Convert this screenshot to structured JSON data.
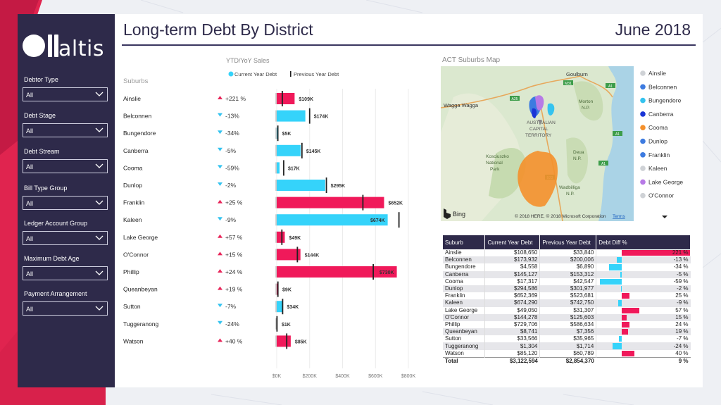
{
  "header": {
    "title": "Long-term Debt By District",
    "date": "June 2018"
  },
  "brand": {
    "logo_text": "altis"
  },
  "filters": [
    {
      "label": "Debtor Type",
      "value": "All"
    },
    {
      "label": "Debt Stage",
      "value": "All"
    },
    {
      "label": "Debt Stream",
      "value": "All"
    },
    {
      "label": "Bill Type Group",
      "value": "All"
    },
    {
      "label": "Ledger Account Group",
      "value": "All"
    },
    {
      "label": "Maximum Debt Age",
      "value": "All"
    },
    {
      "label": "Payment Arrangement",
      "value": "All"
    }
  ],
  "chart_panel": {
    "header": "YTD/YoY Sales",
    "rows_header": "Suburbs"
  },
  "colors": {
    "increase": "#f0195a",
    "decrease": "#35d3fa",
    "previous_marker": "#222222",
    "sidebar": "#2e2a4a",
    "up_arrow": "#e8265a",
    "down_arrow": "#35c3ef"
  },
  "chart_data": {
    "type": "bar",
    "orientation": "horizontal",
    "title": "YTD/YoY Sales",
    "row_header": "Suburbs",
    "legend": [
      "Current Year Debt",
      "Previous Year Debt"
    ],
    "legend_position": "top",
    "categories": [
      "Ainslie",
      "Belconnen",
      "Bungendore",
      "Canberra",
      "Cooma",
      "Dunlop",
      "Franklin",
      "Kaleen",
      "Lake George",
      "O'Connor",
      "Phillip",
      "Queanbeyan",
      "Sutton",
      "Tuggeranong",
      "Watson"
    ],
    "series": [
      {
        "name": "Current Year Debt",
        "values": [
          108650,
          173932,
          4558,
          145127,
          17317,
          294586,
          652369,
          674290,
          49050,
          144278,
          729706,
          8741,
          33566,
          1304,
          85120
        ]
      },
      {
        "name": "Previous Year Debt",
        "values": [
          33840,
          200006,
          6890,
          153312,
          42547,
          301977,
          523681,
          742750,
          31307,
          125603,
          586634,
          7356,
          35965,
          1714,
          60789
        ]
      }
    ],
    "data_labels": [
      "$109K",
      "$174K",
      "$5K",
      "$145K",
      "$17K",
      "$295K",
      "$652K",
      "$674K",
      "$49K",
      "$144K",
      "$730K",
      "$9K",
      "$34K",
      "$1K",
      "$85K"
    ],
    "variance": [
      "+221 %",
      "-13%",
      "-34%",
      "-5%",
      "-59%",
      "-2%",
      "+25 %",
      "-9%",
      "+57 %",
      "+15 %",
      "+24 %",
      "+19 %",
      "-7%",
      "-24%",
      "+40 %"
    ],
    "direction": [
      "up",
      "down",
      "down",
      "down",
      "down",
      "down",
      "up",
      "down",
      "up",
      "up",
      "up",
      "up",
      "down",
      "down",
      "up"
    ],
    "x_ticks": [
      "$0K",
      "$200K",
      "$400K",
      "$600K",
      "$800K"
    ],
    "xlim": [
      0,
      800000
    ],
    "grid": true
  },
  "map": {
    "title": "ACT Suburbs Map",
    "labels": [
      "Goulburn",
      "Wagga Wagga",
      "AUSTRALIAN CAPITAL TERRITORY",
      "Morton N.P.",
      "Kosciuszko National Park",
      "Deua N.P.",
      "Wadbilliga N.P."
    ],
    "road_labels": [
      "A25",
      "M31",
      "A1",
      "A1",
      "B23",
      "A1"
    ],
    "bing_label": "Bing",
    "copyright": "© 2018 HERE, © 2018 Microsoft Corporation",
    "terms": "Terms",
    "legend": [
      {
        "name": "Ainslie",
        "color": "#cfd2d6"
      },
      {
        "name": "Belconnen",
        "color": "#3d7be0"
      },
      {
        "name": "Bungendore",
        "color": "#35c3ef"
      },
      {
        "name": "Canberra",
        "color": "#1a35d6"
      },
      {
        "name": "Cooma",
        "color": "#f4902b"
      },
      {
        "name": "Dunlop",
        "color": "#3d7be0"
      },
      {
        "name": "Franklin",
        "color": "#3d7be0"
      },
      {
        "name": "Kaleen",
        "color": "#cfd2d6"
      },
      {
        "name": "Lake George",
        "color": "#b77ae6"
      },
      {
        "name": "O'Connor",
        "color": "#cfd2d6"
      }
    ]
  },
  "table": {
    "columns": [
      "Suburb",
      "Current Year Debt",
      "Previous Year Debt",
      "Debt Diff %"
    ],
    "rows": [
      {
        "suburb": "Ainslie",
        "current": "$108,650",
        "previous": "$33,840",
        "diff": "221 %",
        "pct": 221
      },
      {
        "suburb": "Belconnen",
        "current": "$173,932",
        "previous": "$200,006",
        "diff": "-13 %",
        "pct": -13
      },
      {
        "suburb": "Bungendore",
        "current": "$4,558",
        "previous": "$6,890",
        "diff": "-34 %",
        "pct": -34
      },
      {
        "suburb": "Canberra",
        "current": "$145,127",
        "previous": "$153,312",
        "diff": "-5 %",
        "pct": -5
      },
      {
        "suburb": "Cooma",
        "current": "$17,317",
        "previous": "$42,547",
        "diff": "-59 %",
        "pct": -59
      },
      {
        "suburb": "Dunlop",
        "current": "$294,586",
        "previous": "$301,977",
        "diff": "-2 %",
        "pct": -2
      },
      {
        "suburb": "Franklin",
        "current": "$652,369",
        "previous": "$523,681",
        "diff": "25 %",
        "pct": 25
      },
      {
        "suburb": "Kaleen",
        "current": "$674,290",
        "previous": "$742,750",
        "diff": "-9 %",
        "pct": -9
      },
      {
        "suburb": "Lake George",
        "current": "$49,050",
        "previous": "$31,307",
        "diff": "57 %",
        "pct": 57
      },
      {
        "suburb": "O'Connor",
        "current": "$144,278",
        "previous": "$125,603",
        "diff": "15 %",
        "pct": 15
      },
      {
        "suburb": "Phillip",
        "current": "$729,706",
        "previous": "$586,634",
        "diff": "24 %",
        "pct": 24
      },
      {
        "suburb": "Queanbeyan",
        "current": "$8,741",
        "previous": "$7,356",
        "diff": "19 %",
        "pct": 19
      },
      {
        "suburb": "Sutton",
        "current": "$33,566",
        "previous": "$35,965",
        "diff": "-7 %",
        "pct": -7
      },
      {
        "suburb": "Tuggeranong",
        "current": "$1,304",
        "previous": "$1,714",
        "diff": "-24 %",
        "pct": -24
      },
      {
        "suburb": "Watson",
        "current": "$85,120",
        "previous": "$60,789",
        "diff": "40 %",
        "pct": 40
      }
    ],
    "total": {
      "suburb": "Total",
      "current": "$3,122,594",
      "previous": "$2,854,370",
      "diff": "9 %"
    }
  }
}
